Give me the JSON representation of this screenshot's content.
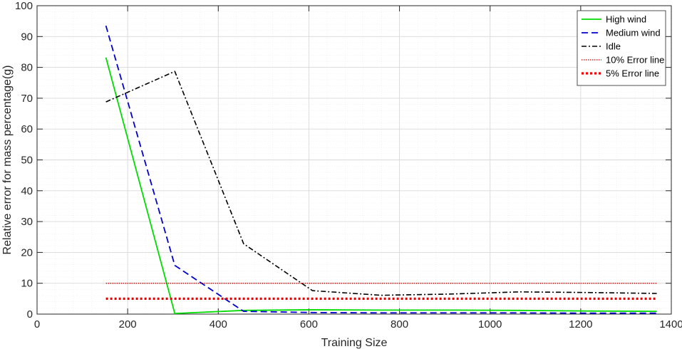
{
  "chart_data": {
    "type": "line",
    "title": "",
    "xlabel": "Training Size",
    "ylabel": "Relative error for mass percentage(g)",
    "xlim": [
      0,
      1400
    ],
    "ylim": [
      0,
      100
    ],
    "xticks": [
      0,
      200,
      400,
      600,
      800,
      1000,
      1200,
      1400
    ],
    "yticks": [
      0,
      10,
      20,
      30,
      40,
      50,
      60,
      70,
      80,
      90,
      100
    ],
    "grid": true,
    "legend_position": "top-right",
    "series": [
      {
        "name": "High wind",
        "color": "#00dd00",
        "dash": "solid",
        "x": [
          152,
          304,
          456,
          608,
          760,
          912,
          1064,
          1216,
          1368
        ],
        "y": [
          83.2,
          0.2,
          1.2,
          1.4,
          1.3,
          1.3,
          1.2,
          1.0,
          0.9
        ]
      },
      {
        "name": "Medium wind",
        "color": "#0000cc",
        "dash": "dashed",
        "x": [
          152,
          304,
          456,
          608,
          760,
          912,
          1064,
          1216,
          1368
        ],
        "y": [
          93.5,
          15.8,
          0.9,
          0.5,
          0.4,
          0.4,
          0.4,
          0.3,
          0.3
        ]
      },
      {
        "name": "Idle",
        "color": "#000000",
        "dash": "dashdot",
        "x": [
          152,
          304,
          456,
          608,
          760,
          912,
          1064,
          1216,
          1368
        ],
        "y": [
          68.8,
          78.7,
          22.8,
          7.6,
          6.1,
          6.5,
          7.2,
          7.0,
          6.7
        ]
      },
      {
        "name": "10% Error line",
        "color": "#cc0000",
        "dash": "dotted-thin",
        "x": [
          152,
          1368
        ],
        "y": [
          10,
          10
        ]
      },
      {
        "name": "5% Error line",
        "color": "#ee0000",
        "dash": "dotted-thick",
        "x": [
          152,
          1368
        ],
        "y": [
          5,
          5
        ]
      }
    ]
  }
}
